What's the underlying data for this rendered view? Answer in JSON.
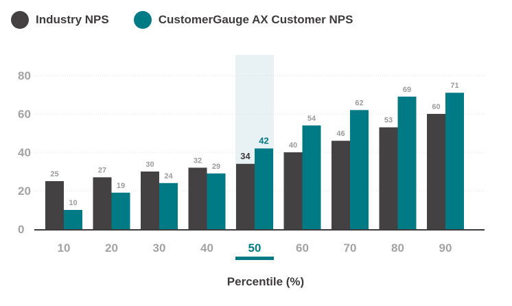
{
  "legend": {
    "industry_label": "Industry NPS",
    "cg_label": "CustomerGauge AX Customer NPS"
  },
  "colors": {
    "industry": "#434142",
    "customergauge": "#007a84",
    "highlight": "#e8f2f4",
    "highlight_bar": "#007a84",
    "gridline": "#e3e3e3",
    "axis": "#3d3b3c",
    "tick": "#a3a3a3",
    "label_muted": "#9b9b9b"
  },
  "chart_data": {
    "type": "bar",
    "categories": [
      "10",
      "20",
      "30",
      "40",
      "50",
      "60",
      "70",
      "80",
      "90"
    ],
    "series": [
      {
        "name": "Industry NPS",
        "values": [
          25,
          27,
          30,
          32,
          34,
          40,
          46,
          53,
          60
        ]
      },
      {
        "name": "CustomerGauge AX Customer NPS",
        "values": [
          10,
          19,
          24,
          29,
          42,
          54,
          62,
          69,
          71
        ]
      }
    ],
    "highlight_category": "50",
    "y_ticks": [
      0,
      20,
      40,
      60,
      80
    ],
    "ylim": [
      0,
      90
    ],
    "grid": true,
    "xlabel": "Percentile (%)",
    "legend_position": "top-left"
  }
}
